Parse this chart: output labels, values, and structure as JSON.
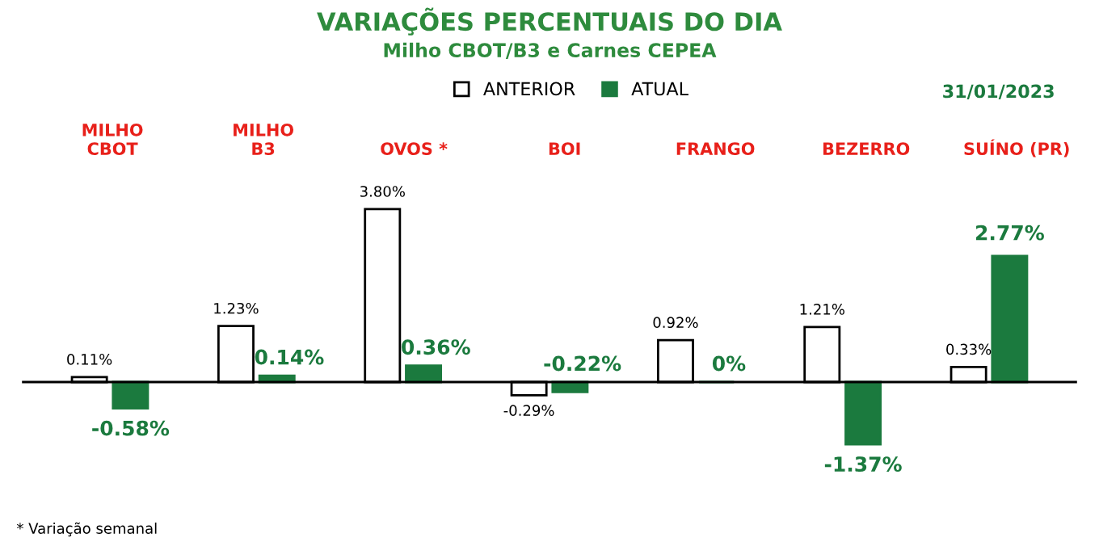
{
  "chart_data": {
    "type": "bar",
    "title": "VARIAÇÕES PERCENTUAIS DO DIA",
    "subtitle": "Milho CBOT/B3 e Carnes CEPEA",
    "categories": [
      "MILHO\nCBOT",
      "MILHO\nB3",
      "OVOS *",
      "BOI",
      "FRANGO",
      "BEZERRO",
      "SUÍNO (PR)"
    ],
    "series": [
      {
        "name": "ANTERIOR",
        "color": "#ffffff",
        "values": [
          0.11,
          1.23,
          3.8,
          -0.29,
          0.92,
          1.21,
          0.33
        ],
        "value_labels": [
          "0.11%",
          "1.23%",
          "3.80%",
          "-0.29%",
          "0.92%",
          "1.21%",
          "0.33%"
        ]
      },
      {
        "name": "ATUAL",
        "color": "#1b7a3e",
        "values": [
          -0.58,
          0.14,
          0.36,
          -0.22,
          0,
          -1.37,
          2.77
        ],
        "value_labels": [
          "-0.58%",
          "0.14%",
          "0.36%",
          "-0.22%",
          "0%",
          "-1.37%",
          "2.77%"
        ]
      }
    ],
    "legend": "top",
    "annotations": [
      "31/01/2023",
      "* Variação semanal"
    ]
  }
}
